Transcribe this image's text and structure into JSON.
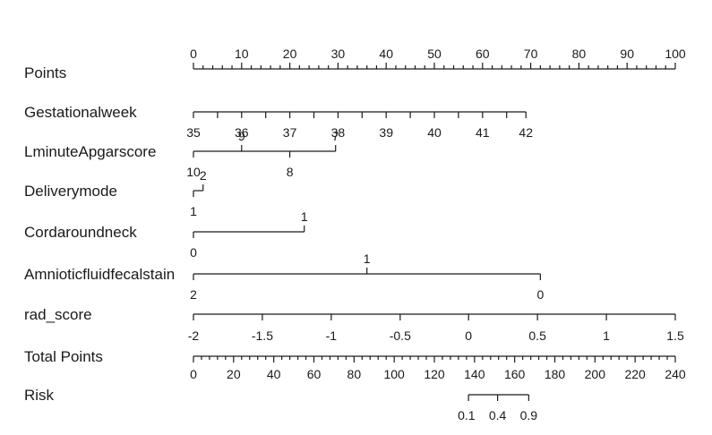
{
  "chart_data": {
    "type": "nomogram",
    "rows": [
      {
        "name": "Points",
        "axis": "points",
        "min": 0,
        "max": 100,
        "labels": [
          {
            "text": "0",
            "value": 0
          },
          {
            "text": "10",
            "value": 10
          },
          {
            "text": "20",
            "value": 20
          },
          {
            "text": "30",
            "value": 30
          },
          {
            "text": "40",
            "value": 40
          },
          {
            "text": "50",
            "value": 50
          },
          {
            "text": "60",
            "value": 60
          },
          {
            "text": "70",
            "value": 70
          },
          {
            "text": "80",
            "value": 80
          },
          {
            "text": "90",
            "value": 90
          },
          {
            "text": "100",
            "value": 100
          }
        ],
        "major_step": 10,
        "minor_step": 2
      },
      {
        "name": "Gestationalweek",
        "axis": "points",
        "labels": [
          {
            "text": "35",
            "points": 0
          },
          {
            "text": "36",
            "points": 10
          },
          {
            "text": "37",
            "points": 20
          },
          {
            "text": "38",
            "points": 30
          },
          {
            "text": "39",
            "points": 40
          },
          {
            "text": "40",
            "points": 50
          },
          {
            "text": "41",
            "points": 60
          },
          {
            "text": "42",
            "points": 69
          }
        ],
        "extra_ticks": [
          {
            "points": 5
          },
          {
            "points": 15
          },
          {
            "points": 25
          },
          {
            "points": 35
          },
          {
            "points": 45
          },
          {
            "points": 55
          },
          {
            "points": 65
          }
        ]
      },
      {
        "name": "LminuteApgarscore",
        "axis": "points",
        "labels": [
          {
            "text": "10",
            "points": 0,
            "side": "below"
          },
          {
            "text": "9",
            "points": 10,
            "side": "above"
          },
          {
            "text": "8",
            "points": 20,
            "side": "below"
          },
          {
            "text": "7",
            "points": 29.5,
            "side": "above"
          }
        ]
      },
      {
        "name": "Deliverymode",
        "axis": "points",
        "labels": [
          {
            "text": "2",
            "points": 2,
            "side": "above"
          },
          {
            "text": "1",
            "points": 0,
            "side": "below"
          }
        ]
      },
      {
        "name": "Cordaroundneck",
        "axis": "points",
        "labels": [
          {
            "text": "1",
            "points": 23,
            "side": "above"
          },
          {
            "text": "0",
            "points": 0,
            "side": "below"
          }
        ]
      },
      {
        "name": "Amnioticfluidfecalstain",
        "axis": "points",
        "labels": [
          {
            "text": "1",
            "points": 36,
            "side": "above"
          },
          {
            "text": "2",
            "points": 0,
            "side": "below"
          },
          {
            "text": "0",
            "points": 72,
            "side": "below"
          }
        ]
      },
      {
        "name": "rad_score",
        "axis": "points",
        "labels": [
          {
            "text": "-2",
            "points": 0
          },
          {
            "text": "-1.5",
            "points": 14.3
          },
          {
            "text": "-1",
            "points": 28.6
          },
          {
            "text": "-0.5",
            "points": 42.9
          },
          {
            "text": "0",
            "points": 57.1
          },
          {
            "text": "0.5",
            "points": 71.4
          },
          {
            "text": "1",
            "points": 85.7
          },
          {
            "text": "1.5",
            "points": 100
          }
        ]
      },
      {
        "name": "Total Points",
        "axis": "total",
        "min": 0,
        "max": 240,
        "labels": [
          {
            "text": "0",
            "value": 0
          },
          {
            "text": "20",
            "value": 20
          },
          {
            "text": "40",
            "value": 40
          },
          {
            "text": "60",
            "value": 60
          },
          {
            "text": "80",
            "value": 80
          },
          {
            "text": "100",
            "value": 100
          },
          {
            "text": "120",
            "value": 120
          },
          {
            "text": "140",
            "value": 140
          },
          {
            "text": "160",
            "value": 160
          },
          {
            "text": "180",
            "value": 180
          },
          {
            "text": "200",
            "value": 200
          },
          {
            "text": "220",
            "value": 220
          },
          {
            "text": "240",
            "value": 240
          }
        ],
        "major_step": 20,
        "minor_step": 4
      },
      {
        "name": "Risk",
        "axis": "total",
        "labels": [
          {
            "text": "0.1",
            "total": 137
          },
          {
            "text": "0.4",
            "total": 151.5
          },
          {
            "text": "0.9",
            "total": 167
          }
        ],
        "label_align": [
          "start",
          "middle",
          "middle"
        ]
      }
    ]
  }
}
